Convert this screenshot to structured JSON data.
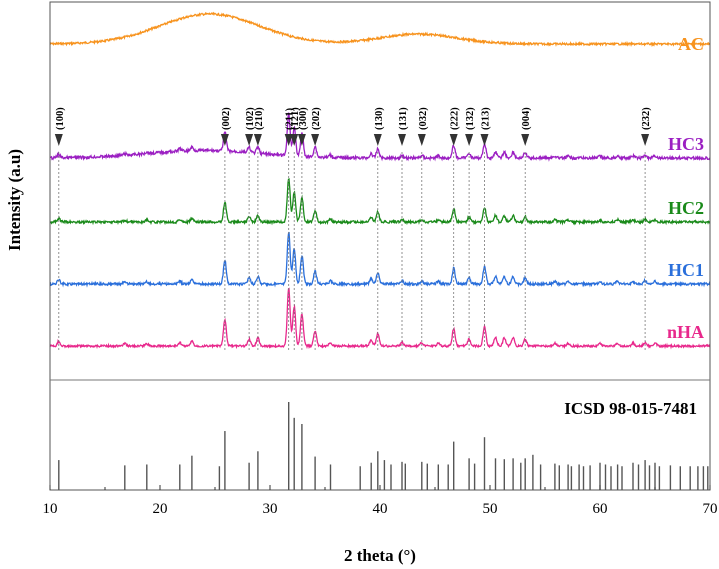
{
  "chart_data": {
    "type": "line",
    "xlabel": "2 theta (°)",
    "ylabel": "Intensity (a.u)",
    "xlim": [
      10,
      70
    ],
    "xticks": [
      "10",
      "20",
      "30",
      "40",
      "50",
      "60",
      "70"
    ],
    "legend_placement": "inline labels at right end of each trace",
    "grid": false,
    "series": [
      {
        "name": "AC",
        "color": "#f7931e",
        "broad_peaks": [
          {
            "x": 24.5,
            "height": 1.0,
            "width": 4.5
          },
          {
            "x": 43.5,
            "height": 0.33,
            "width": 3.5
          }
        ]
      },
      {
        "name": "HC3",
        "color": "#9b1fc2",
        "amorphous_hump": {
          "x": 24,
          "height": 0.18,
          "width": 5
        }
      },
      {
        "name": "HC2",
        "color": "#1a8a1a"
      },
      {
        "name": "HC1",
        "color": "#2a6fdb"
      },
      {
        "name": "nHA",
        "color": "#e8288c"
      }
    ],
    "crystalline_peaks": [
      {
        "x": 10.8,
        "i": 0.08
      },
      {
        "x": 16.8,
        "i": 0.04
      },
      {
        "x": 18.8,
        "i": 0.04
      },
      {
        "x": 21.8,
        "i": 0.06
      },
      {
        "x": 22.9,
        "i": 0.08
      },
      {
        "x": 25.9,
        "i": 0.45
      },
      {
        "x": 28.1,
        "i": 0.12
      },
      {
        "x": 28.9,
        "i": 0.14
      },
      {
        "x": 31.7,
        "i": 1.0
      },
      {
        "x": 32.2,
        "i": 0.68
      },
      {
        "x": 32.9,
        "i": 0.55
      },
      {
        "x": 34.1,
        "i": 0.25
      },
      {
        "x": 35.5,
        "i": 0.06
      },
      {
        "x": 39.2,
        "i": 0.1
      },
      {
        "x": 39.8,
        "i": 0.22
      },
      {
        "x": 42.0,
        "i": 0.06
      },
      {
        "x": 43.8,
        "i": 0.06
      },
      {
        "x": 45.3,
        "i": 0.05
      },
      {
        "x": 46.7,
        "i": 0.3
      },
      {
        "x": 48.1,
        "i": 0.12
      },
      {
        "x": 49.5,
        "i": 0.34
      },
      {
        "x": 50.5,
        "i": 0.15
      },
      {
        "x": 51.3,
        "i": 0.14
      },
      {
        "x": 52.1,
        "i": 0.14
      },
      {
        "x": 53.2,
        "i": 0.12
      },
      {
        "x": 55.9,
        "i": 0.05
      },
      {
        "x": 57.1,
        "i": 0.04
      },
      {
        "x": 60.0,
        "i": 0.04
      },
      {
        "x": 61.6,
        "i": 0.05
      },
      {
        "x": 63.0,
        "i": 0.05
      },
      {
        "x": 64.1,
        "i": 0.06
      },
      {
        "x": 65.0,
        "i": 0.05
      }
    ],
    "hkl_markers": [
      {
        "label": "(100)",
        "x": 10.8
      },
      {
        "label": "(002)",
        "x": 25.9
      },
      {
        "label": "(102)",
        "x": 28.1
      },
      {
        "label": "(210)",
        "x": 28.9
      },
      {
        "label": "(211)",
        "x": 31.7
      },
      {
        "label": "(121)",
        "x": 32.2
      },
      {
        "label": "(300)",
        "x": 32.9
      },
      {
        "label": "(202)",
        "x": 34.1
      },
      {
        "label": "(130)",
        "x": 39.8
      },
      {
        "label": "(131)",
        "x": 42.0
      },
      {
        "label": "(032)",
        "x": 43.8
      },
      {
        "label": "(222)",
        "x": 46.7
      },
      {
        "label": "(132)",
        "x": 48.1
      },
      {
        "label": "(213)",
        "x": 49.5
      },
      {
        "label": "(004)",
        "x": 53.2
      },
      {
        "label": "(232)",
        "x": 64.1
      }
    ],
    "reference": {
      "name": "ICSD 98-015-7481",
      "lines": [
        {
          "x": 10.8,
          "i": 0.34
        },
        {
          "x": 16.8,
          "i": 0.28
        },
        {
          "x": 18.8,
          "i": 0.29
        },
        {
          "x": 21.8,
          "i": 0.29
        },
        {
          "x": 22.9,
          "i": 0.39
        },
        {
          "x": 25.4,
          "i": 0.27
        },
        {
          "x": 25.9,
          "i": 0.67
        },
        {
          "x": 28.1,
          "i": 0.31
        },
        {
          "x": 28.9,
          "i": 0.44
        },
        {
          "x": 31.7,
          "i": 1.0
        },
        {
          "x": 32.2,
          "i": 0.82
        },
        {
          "x": 32.9,
          "i": 0.75
        },
        {
          "x": 34.1,
          "i": 0.38
        },
        {
          "x": 35.5,
          "i": 0.29
        },
        {
          "x": 38.2,
          "i": 0.27
        },
        {
          "x": 39.2,
          "i": 0.31
        },
        {
          "x": 39.8,
          "i": 0.44
        },
        {
          "x": 40.4,
          "i": 0.34
        },
        {
          "x": 41.0,
          "i": 0.29
        },
        {
          "x": 42.0,
          "i": 0.32
        },
        {
          "x": 42.3,
          "i": 0.3
        },
        {
          "x": 43.8,
          "i": 0.32
        },
        {
          "x": 44.3,
          "i": 0.3
        },
        {
          "x": 45.3,
          "i": 0.29
        },
        {
          "x": 46.2,
          "i": 0.29
        },
        {
          "x": 46.7,
          "i": 0.55
        },
        {
          "x": 48.1,
          "i": 0.36
        },
        {
          "x": 48.6,
          "i": 0.3
        },
        {
          "x": 49.5,
          "i": 0.6
        },
        {
          "x": 50.5,
          "i": 0.36
        },
        {
          "x": 51.3,
          "i": 0.35
        },
        {
          "x": 52.1,
          "i": 0.36
        },
        {
          "x": 52.8,
          "i": 0.31
        },
        {
          "x": 53.2,
          "i": 0.36
        },
        {
          "x": 53.9,
          "i": 0.4
        },
        {
          "x": 54.6,
          "i": 0.29
        },
        {
          "x": 55.9,
          "i": 0.3
        },
        {
          "x": 56.3,
          "i": 0.28
        },
        {
          "x": 57.1,
          "i": 0.29
        },
        {
          "x": 57.4,
          "i": 0.27
        },
        {
          "x": 58.1,
          "i": 0.29
        },
        {
          "x": 58.5,
          "i": 0.27
        },
        {
          "x": 59.1,
          "i": 0.28
        },
        {
          "x": 60.0,
          "i": 0.31
        },
        {
          "x": 60.5,
          "i": 0.29
        },
        {
          "x": 61.0,
          "i": 0.27
        },
        {
          "x": 61.6,
          "i": 0.29
        },
        {
          "x": 62.0,
          "i": 0.27
        },
        {
          "x": 63.0,
          "i": 0.31
        },
        {
          "x": 63.5,
          "i": 0.29
        },
        {
          "x": 64.1,
          "i": 0.34
        },
        {
          "x": 64.5,
          "i": 0.28
        },
        {
          "x": 65.0,
          "i": 0.31
        },
        {
          "x": 65.4,
          "i": 0.27
        },
        {
          "x": 66.4,
          "i": 0.28
        },
        {
          "x": 67.3,
          "i": 0.27
        },
        {
          "x": 68.2,
          "i": 0.27
        },
        {
          "x": 68.9,
          "i": 0.27
        },
        {
          "x": 69.4,
          "i": 0.27
        },
        {
          "x": 69.8,
          "i": 0.27
        }
      ]
    }
  }
}
